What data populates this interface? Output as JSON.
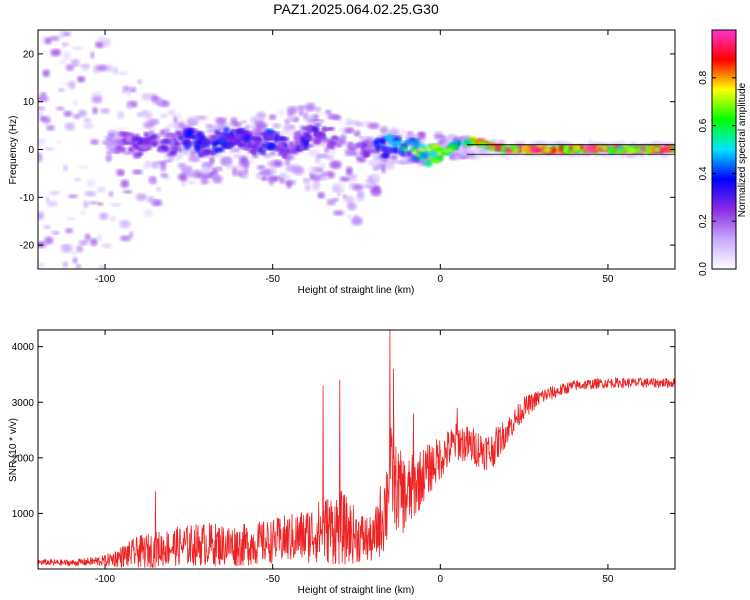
{
  "title": "PAZ1.2025.064.02.25.G30",
  "chart_data": [
    {
      "type": "heatmap",
      "xlabel": "Height of straight line (km)",
      "ylabel": "Frequency (Hz)",
      "xlim": [
        -120,
        70
      ],
      "ylim": [
        -25,
        25
      ],
      "xticks": [
        -100,
        -50,
        0,
        50
      ],
      "yticks": [
        -20,
        -10,
        0,
        10,
        20
      ],
      "colorbar": {
        "label": "Normalized spectral amplitude",
        "range": [
          0,
          1
        ],
        "ticks": [
          "0.0",
          "0.2",
          "0.4",
          "0.6",
          "0.8"
        ],
        "colors": [
          "#ffffff",
          "#c8a8ff",
          "#8a2be2",
          "#0000ff",
          "#00e5ff",
          "#00ff00",
          "#ffff00",
          "#ff0000",
          "#ff33cc"
        ]
      },
      "ridge": {
        "x": [
          -100,
          -95,
          -90,
          -85,
          -80,
          -75,
          -70,
          -65,
          -60,
          -55,
          -50,
          -45,
          -40,
          -35,
          -30,
          -25,
          -20,
          -15,
          -10,
          -5,
          0,
          5,
          10,
          15,
          20,
          30,
          40,
          50,
          60,
          70
        ],
        "freq": [
          1.0,
          1.5,
          0.5,
          2.0,
          1.0,
          2.5,
          0.5,
          2.0,
          3.0,
          1.0,
          2.0,
          0.0,
          2.5,
          3.5,
          1.5,
          -1.0,
          0.0,
          1.0,
          1.0,
          -1.0,
          -1.0,
          1.0,
          1.8,
          0.5,
          0.0,
          0.0,
          0.0,
          0.0,
          0.0,
          0.0
        ],
        "amplitude": [
          0.15,
          0.25,
          0.3,
          0.35,
          0.3,
          0.4,
          0.35,
          0.4,
          0.35,
          0.35,
          0.4,
          0.3,
          0.35,
          0.3,
          0.3,
          0.2,
          0.35,
          0.5,
          0.6,
          0.75,
          0.8,
          0.7,
          0.85,
          0.9,
          0.95,
          0.97,
          0.98,
          0.98,
          0.98,
          0.98
        ]
      },
      "spread_hz": {
        "x": [
          -120,
          -100,
          -80,
          -60,
          -40,
          -25,
          -15,
          0,
          20,
          70
        ],
        "upper": [
          25,
          24,
          8,
          6,
          10,
          6,
          4,
          3,
          1.5,
          1
        ],
        "lower": [
          -25,
          -25,
          -8,
          -6,
          -8,
          -17,
          -4,
          -2,
          -1,
          -1
        ]
      },
      "shaded_rectangle": {
        "present": true
      },
      "notes_visual": "black horizontal band at 0 to 1 Hz from about 8 km to 70 km"
    },
    {
      "type": "line",
      "xlabel": "Height of straight line (km)",
      "ylabel": "SNR (10 * v/v)",
      "xlim": [
        -120,
        70
      ],
      "ylim": [
        0,
        4300
      ],
      "xticks": [
        -100,
        -50,
        0,
        50
      ],
      "yticks": [
        1000,
        2000,
        3000,
        4000
      ],
      "color": "#ee2222",
      "envelope": {
        "x": [
          -120,
          -110,
          -100,
          -90,
          -80,
          -70,
          -60,
          -50,
          -40,
          -35,
          -30,
          -25,
          -20,
          -16,
          -15,
          -14,
          -10,
          -5,
          0,
          5,
          10,
          15,
          20,
          25,
          30,
          35,
          40,
          50,
          60,
          70
        ],
        "mean": [
          120,
          110,
          150,
          300,
          400,
          450,
          420,
          500,
          600,
          700,
          750,
          600,
          500,
          1200,
          2000,
          1500,
          1300,
          1700,
          2000,
          2300,
          2200,
          2100,
          2500,
          2900,
          3100,
          3200,
          3300,
          3350,
          3350,
          3350
        ],
        "noise": [
          60,
          60,
          100,
          300,
          350,
          400,
          380,
          400,
          500,
          600,
          700,
          500,
          400,
          900,
          700,
          800,
          700,
          500,
          400,
          350,
          350,
          350,
          250,
          200,
          150,
          120,
          100,
          90,
          90,
          90
        ]
      },
      "spikes": [
        {
          "x": -85,
          "y": 1400
        },
        {
          "x": -35,
          "y": 3300
        },
        {
          "x": -30,
          "y": 3400
        },
        {
          "x": -15,
          "y": 4300
        },
        {
          "x": -14,
          "y": 3600
        },
        {
          "x": -8,
          "y": 2800
        },
        {
          "x": 5,
          "y": 2900
        }
      ]
    }
  ]
}
